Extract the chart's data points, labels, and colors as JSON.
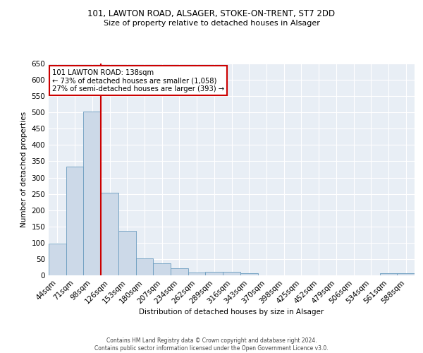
{
  "title1": "101, LAWTON ROAD, ALSAGER, STOKE-ON-TRENT, ST7 2DD",
  "title2": "Size of property relative to detached houses in Alsager",
  "xlabel": "Distribution of detached houses by size in Alsager",
  "ylabel": "Number of detached properties",
  "categories": [
    "44sqm",
    "71sqm",
    "98sqm",
    "126sqm",
    "153sqm",
    "180sqm",
    "207sqm",
    "234sqm",
    "262sqm",
    "289sqm",
    "316sqm",
    "343sqm",
    "370sqm",
    "398sqm",
    "425sqm",
    "452sqm",
    "479sqm",
    "506sqm",
    "534sqm",
    "561sqm",
    "588sqm"
  ],
  "values": [
    97,
    333,
    503,
    253,
    136,
    52,
    37,
    22,
    8,
    10,
    10,
    6,
    1,
    1,
    1,
    1,
    1,
    1,
    1,
    6,
    6
  ],
  "bar_color": "#ccd9e8",
  "bar_edge_color": "#6a9cbf",
  "bg_color": "#e8eef5",
  "grid_color": "#ffffff",
  "vline_color": "#cc0000",
  "annotation_text": "101 LAWTON ROAD: 138sqm\n← 73% of detached houses are smaller (1,058)\n27% of semi-detached houses are larger (393) →",
  "annotation_box_color": "#ffffff",
  "annotation_box_edge": "#cc0000",
  "footer_text": "Contains HM Land Registry data © Crown copyright and database right 2024.\nContains public sector information licensed under the Open Government Licence v3.0.",
  "ylim": [
    0,
    650
  ],
  "yticks": [
    0,
    50,
    100,
    150,
    200,
    250,
    300,
    350,
    400,
    450,
    500,
    550,
    600,
    650
  ]
}
